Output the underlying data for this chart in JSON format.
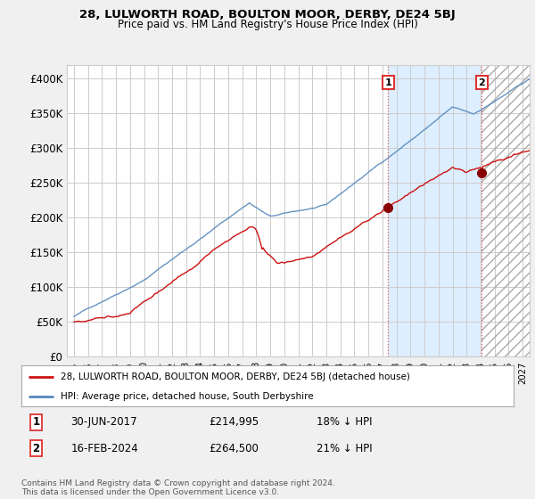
{
  "title": "28, LULWORTH ROAD, BOULTON MOOR, DERBY, DE24 5BJ",
  "subtitle": "Price paid vs. HM Land Registry's House Price Index (HPI)",
  "ylim": [
    0,
    420000
  ],
  "yticks": [
    0,
    50000,
    100000,
    150000,
    200000,
    250000,
    300000,
    350000,
    400000
  ],
  "ytick_labels": [
    "£0",
    "£50K",
    "£100K",
    "£150K",
    "£200K",
    "£250K",
    "£300K",
    "£350K",
    "£400K"
  ],
  "hpi_color": "#5588bb",
  "price_color": "#cc1111",
  "vline_color": "#dd3333",
  "shaded_color": "#ddeeff",
  "hatch_color": "#cccccc",
  "grid_color": "#cccccc",
  "background_color": "#f0f0f0",
  "plot_bg_color": "#ffffff",
  "legend_line1": "28, LULWORTH ROAD, BOULTON MOOR, DERBY, DE24 5BJ (detached house)",
  "legend_line2": "HPI: Average price, detached house, South Derbyshire",
  "footnote": "Contains HM Land Registry data © Crown copyright and database right 2024.\nThis data is licensed under the Open Government Licence v3.0.",
  "sale1_year": 2017.5,
  "sale1_price": 214995,
  "sale2_year": 2024.12,
  "sale2_price": 264500,
  "xlim_left": 1994.5,
  "xlim_right": 2027.5
}
